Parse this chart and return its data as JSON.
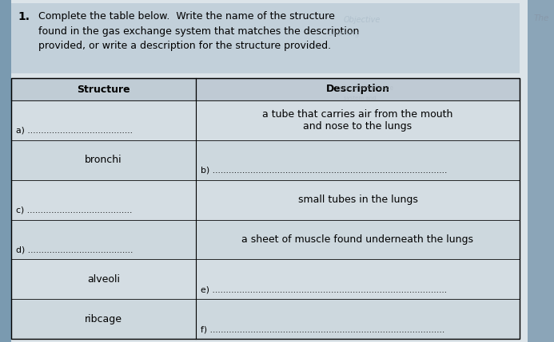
{
  "question_number": "1.",
  "question_text": "Complete the table below.  Write the name of the structure\nfound in the gas exchange system that matches the description\nprovided, or write a description for the structure provided.",
  "col_headers": [
    "Structure",
    "Description"
  ],
  "rows": [
    [
      "a) .......................................",
      "a tube that carries air from the mouth\nand nose to the lungs"
    ],
    [
      "bronchi",
      "b) ......................................................................................."
    ],
    [
      "c) .......................................",
      "small tubes in the lungs"
    ],
    [
      "d) .......................................",
      "a sheet of muscle found underneath the lungs"
    ],
    [
      "alveoli",
      "e) ......................................................................................."
    ],
    [
      "ribcage",
      "f) ......................................................................................."
    ]
  ],
  "bg_outer": "#8ba5b8",
  "bg_page": "#dde5ea",
  "question_box_color": "#c5d3dc",
  "header_bg": "#c0cdd6",
  "row_bg_even": "#d8e2e8",
  "row_bg_odd": "#cfd9e0",
  "figsize": [
    6.93,
    4.29
  ],
  "dpi": 100
}
